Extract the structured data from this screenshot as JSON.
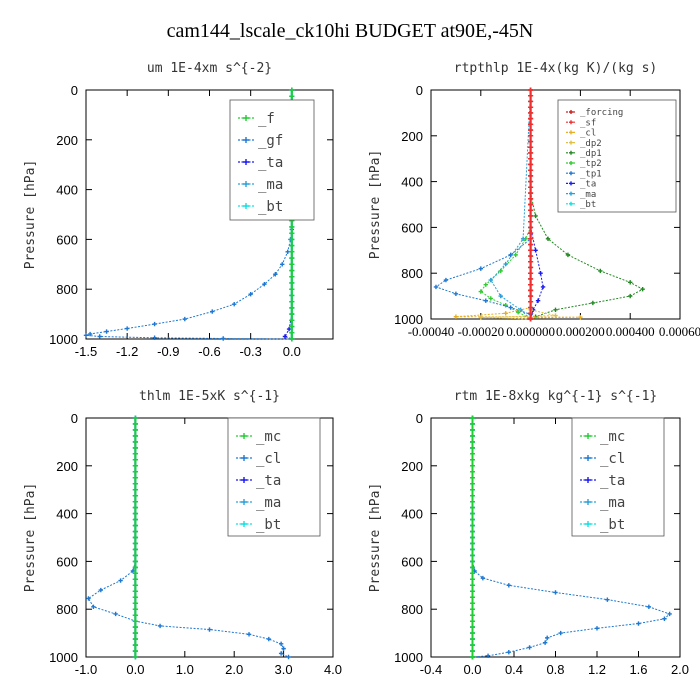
{
  "page": {
    "title": "cam144_lscale_ck10hi  BUDGET at90E,-45N"
  },
  "colors": {
    "_f": "#22cc33",
    "_gf": "#1e78d2",
    "_ta": "#1a1aee",
    "_ma": "#2aa0d8",
    "_bt": "#10e0e0",
    "_mc": "#22cc33",
    "_cl": "#1e78d2",
    "_forcing": "#cc2222",
    "_sf": "#ee3030",
    "_cl2": "#e8b020",
    "_dp2": "#e0c040",
    "_dp1": "#228822",
    "_tp2": "#33cc33",
    "_tp1": "#1e78d2"
  },
  "chart_data": [
    {
      "type": "line",
      "title": "um   1E-4xm  s^{-2}",
      "ylabel": "Pressure  [hPa]",
      "xlim": [
        -1.5,
        0.3
      ],
      "ylim": [
        1000,
        0
      ],
      "xticks": [
        -1.5,
        -1.2,
        -0.9,
        -0.6,
        -0.3,
        0.0
      ],
      "xtick_labels": [
        "-1.5",
        "-1.2",
        "-0.9",
        "-0.6",
        "-0.3",
        "0.0"
      ],
      "yticks": [
        0,
        200,
        400,
        600,
        800,
        1000
      ],
      "legend": [
        "_f",
        "_gf",
        "_ta",
        "_ma",
        "_bt"
      ],
      "legend_position": "top-right",
      "series": [
        {
          "name": "_gf",
          "points": [
            [
              0,
              0
            ],
            [
              0,
              100
            ],
            [
              0,
              200
            ],
            [
              0,
              300
            ],
            [
              0,
              400
            ],
            [
              0,
              500
            ],
            [
              0,
              560
            ],
            [
              -0.01,
              600
            ],
            [
              -0.03,
              650
            ],
            [
              -0.07,
              700
            ],
            [
              -0.12,
              740
            ],
            [
              -0.2,
              780
            ],
            [
              -0.3,
              820
            ],
            [
              -0.42,
              860
            ],
            [
              -0.58,
              890
            ],
            [
              -0.78,
              920
            ],
            [
              -1.0,
              940
            ],
            [
              -1.2,
              958
            ],
            [
              -1.35,
              970
            ],
            [
              -1.47,
              980
            ],
            [
              -1.5,
              985
            ],
            [
              -1.4,
              990
            ],
            [
              -1.0,
              995
            ],
            [
              -0.5,
              998
            ],
            [
              0,
              1000
            ]
          ]
        },
        {
          "name": "_ta",
          "points": [
            [
              0,
              0
            ],
            [
              0,
              600
            ],
            [
              0,
              900
            ],
            [
              -0.02,
              960
            ],
            [
              -0.05,
              990
            ],
            [
              0,
              1000
            ]
          ]
        },
        {
          "name": "_ma",
          "points": [
            [
              0,
              0
            ],
            [
              0,
              1000
            ]
          ]
        },
        {
          "name": "_bt",
          "points": [
            [
              0,
              0
            ],
            [
              0,
              1000
            ]
          ]
        },
        {
          "name": "_f",
          "points": [
            [
              0,
              0
            ],
            [
              0,
              1000
            ]
          ]
        }
      ]
    },
    {
      "type": "line",
      "title": "rtpthlp   1E-4x(kg K)/(kg s)",
      "ylabel": "Pressure  [hPa]",
      "xlim": [
        -0.0004,
        0.0006
      ],
      "ylim": [
        1000,
        0
      ],
      "xticks": [
        -0.0004,
        -0.0002,
        0.0,
        0.0002,
        0.0004,
        0.0006
      ],
      "xtick_labels": [
        "-0.00040",
        "-0.00020",
        "0.000000",
        "0.000200",
        "0.000400",
        "0.00060"
      ],
      "yticks": [
        0,
        200,
        400,
        600,
        800,
        1000
      ],
      "legend": [
        "_forcing",
        "_sf",
        "_cl",
        "_dp2",
        "_dp1",
        "_tp2",
        "_tp1",
        "_ta",
        "_ma",
        "_bt"
      ],
      "legend_position": "top-right",
      "series": [
        {
          "name": "_dp1",
          "points": [
            [
              0,
              0
            ],
            [
              0,
              450
            ],
            [
              2e-05,
              550
            ],
            [
              7e-05,
              650
            ],
            [
              0.00015,
              720
            ],
            [
              0.00028,
              790
            ],
            [
              0.0004,
              840
            ],
            [
              0.00045,
              870
            ],
            [
              0.0004,
              900
            ],
            [
              0.00025,
              930
            ],
            [
              0.0001,
              960
            ],
            [
              2e-05,
              990
            ],
            [
              0,
              1000
            ]
          ]
        },
        {
          "name": "_tp2",
          "points": [
            [
              0,
              0
            ],
            [
              0,
              600
            ],
            [
              -2e-05,
              650
            ],
            [
              -6e-05,
              720
            ],
            [
              -0.00012,
              790
            ],
            [
              -0.00018,
              850
            ],
            [
              -0.0002,
              880
            ],
            [
              -0.00016,
              910
            ],
            [
              -0.0001,
              940
            ],
            [
              -5e-05,
              970
            ],
            [
              0,
              1000
            ]
          ]
        },
        {
          "name": "_tp1",
          "points": [
            [
              0,
              0
            ],
            [
              0,
              650
            ],
            [
              -8e-05,
              720
            ],
            [
              -0.0002,
              780
            ],
            [
              -0.00034,
              830
            ],
            [
              -0.00038,
              860
            ],
            [
              -0.0003,
              890
            ],
            [
              -0.00018,
              920
            ],
            [
              -8e-05,
              950
            ],
            [
              0,
              980
            ]
          ]
        },
        {
          "name": "_ta",
          "points": [
            [
              0,
              0
            ],
            [
              0,
              600
            ],
            [
              2e-05,
              700
            ],
            [
              4e-05,
              800
            ],
            [
              5e-05,
              860
            ],
            [
              3e-05,
              920
            ],
            [
              1e-05,
              960
            ],
            [
              0,
              1000
            ]
          ]
        },
        {
          "name": "_ma",
          "points": [
            [
              0,
              0
            ],
            [
              -3e-05,
              650
            ],
            [
              -0.0001,
              760
            ],
            [
              -0.00016,
              830
            ],
            [
              -0.00012,
              900
            ],
            [
              -4e-05,
              960
            ],
            [
              0,
              1000
            ]
          ]
        },
        {
          "name": "_cl",
          "points": [
            [
              0,
              0
            ],
            [
              0,
              950
            ],
            [
              -0.0001,
              975
            ],
            [
              -0.0003,
              990
            ],
            [
              0.0002,
              992
            ],
            [
              0,
              995
            ]
          ]
        },
        {
          "name": "_dp2",
          "points": [
            [
              0,
              0
            ],
            [
              0,
              960
            ],
            [
              0.0001,
              985
            ],
            [
              -0.0002,
              993
            ],
            [
              0,
              1000
            ]
          ]
        },
        {
          "name": "_bt",
          "points": [
            [
              0,
              0
            ],
            [
              0,
              1000
            ]
          ]
        },
        {
          "name": "_forcing",
          "points": [
            [
              0,
              0
            ],
            [
              0,
              1000
            ]
          ]
        },
        {
          "name": "_sf",
          "points": [
            [
              0,
              0
            ],
            [
              0,
              1000
            ]
          ]
        }
      ]
    },
    {
      "type": "line",
      "title": "thlm   1E-5xK  s^{-1}",
      "ylabel": "Pressure  [hPa]",
      "xlim": [
        -1.0,
        4.0
      ],
      "ylim": [
        1000,
        0
      ],
      "xticks": [
        -1.0,
        0.0,
        1.0,
        2.0,
        3.0,
        4.0
      ],
      "xtick_labels": [
        "-1.0",
        "0.0",
        "1.0",
        "2.0",
        "3.0",
        "4.0"
      ],
      "yticks": [
        0,
        200,
        400,
        600,
        800,
        1000
      ],
      "legend": [
        "_mc",
        "_cl",
        "_ta",
        "_ma",
        "_bt"
      ],
      "legend_position": "top-right",
      "series": [
        {
          "name": "_cl",
          "points": [
            [
              0,
              0
            ],
            [
              0,
              600
            ],
            [
              -0.05,
              640
            ],
            [
              -0.3,
              680
            ],
            [
              -0.7,
              720
            ],
            [
              -0.95,
              755
            ],
            [
              -0.85,
              790
            ],
            [
              -0.4,
              820
            ],
            [
              0,
              850
            ],
            [
              0.5,
              870
            ],
            [
              1.5,
              885
            ],
            [
              2.3,
              905
            ],
            [
              2.7,
              925
            ],
            [
              2.95,
              945
            ],
            [
              3.0,
              965
            ],
            [
              2.95,
              985
            ],
            [
              3.1,
              1000
            ]
          ]
        },
        {
          "name": "_ta",
          "points": [
            [
              0,
              0
            ],
            [
              0,
              1000
            ]
          ]
        },
        {
          "name": "_ma",
          "points": [
            [
              0,
              0
            ],
            [
              0,
              1000
            ]
          ]
        },
        {
          "name": "_bt",
          "points": [
            [
              0,
              0
            ],
            [
              0,
              1000
            ]
          ]
        },
        {
          "name": "_mc",
          "points": [
            [
              0,
              0
            ],
            [
              0,
              1000
            ]
          ]
        }
      ]
    },
    {
      "type": "line",
      "title": "rtm   1E-8xkg  kg^{-1}  s^{-1}",
      "ylabel": "Pressure  [hPa]",
      "xlim": [
        -0.4,
        2.0
      ],
      "ylim": [
        1000,
        0
      ],
      "xticks": [
        -0.4,
        0.0,
        0.4,
        0.8,
        1.2,
        1.6,
        2.0
      ],
      "xtick_labels": [
        "-0.4",
        "0.0",
        "0.4",
        "0.8",
        "1.2",
        "1.6",
        "2.0"
      ],
      "yticks": [
        0,
        200,
        400,
        600,
        800,
        1000
      ],
      "legend": [
        "_mc",
        "_cl",
        "_ta",
        "_ma",
        "_bt"
      ],
      "legend_position": "top-right",
      "series": [
        {
          "name": "_cl",
          "points": [
            [
              0,
              0
            ],
            [
              0,
              600
            ],
            [
              0.02,
              640
            ],
            [
              0.1,
              670
            ],
            [
              0.35,
              700
            ],
            [
              0.8,
              730
            ],
            [
              1.3,
              760
            ],
            [
              1.7,
              790
            ],
            [
              1.9,
              820
            ],
            [
              1.85,
              840
            ],
            [
              1.6,
              860
            ],
            [
              1.2,
              880
            ],
            [
              0.85,
              900
            ],
            [
              0.72,
              920
            ],
            [
              0.7,
              940
            ],
            [
              0.55,
              960
            ],
            [
              0.35,
              980
            ],
            [
              0.15,
              995
            ],
            [
              0,
              1000
            ]
          ]
        },
        {
          "name": "_ta",
          "points": [
            [
              0,
              0
            ],
            [
              0,
              1000
            ]
          ]
        },
        {
          "name": "_ma",
          "points": [
            [
              0,
              0
            ],
            [
              0,
              1000
            ]
          ]
        },
        {
          "name": "_bt",
          "points": [
            [
              0,
              0
            ],
            [
              0,
              1000
            ]
          ]
        },
        {
          "name": "_mc",
          "points": [
            [
              0,
              0
            ],
            [
              0,
              1000
            ]
          ]
        }
      ]
    }
  ]
}
